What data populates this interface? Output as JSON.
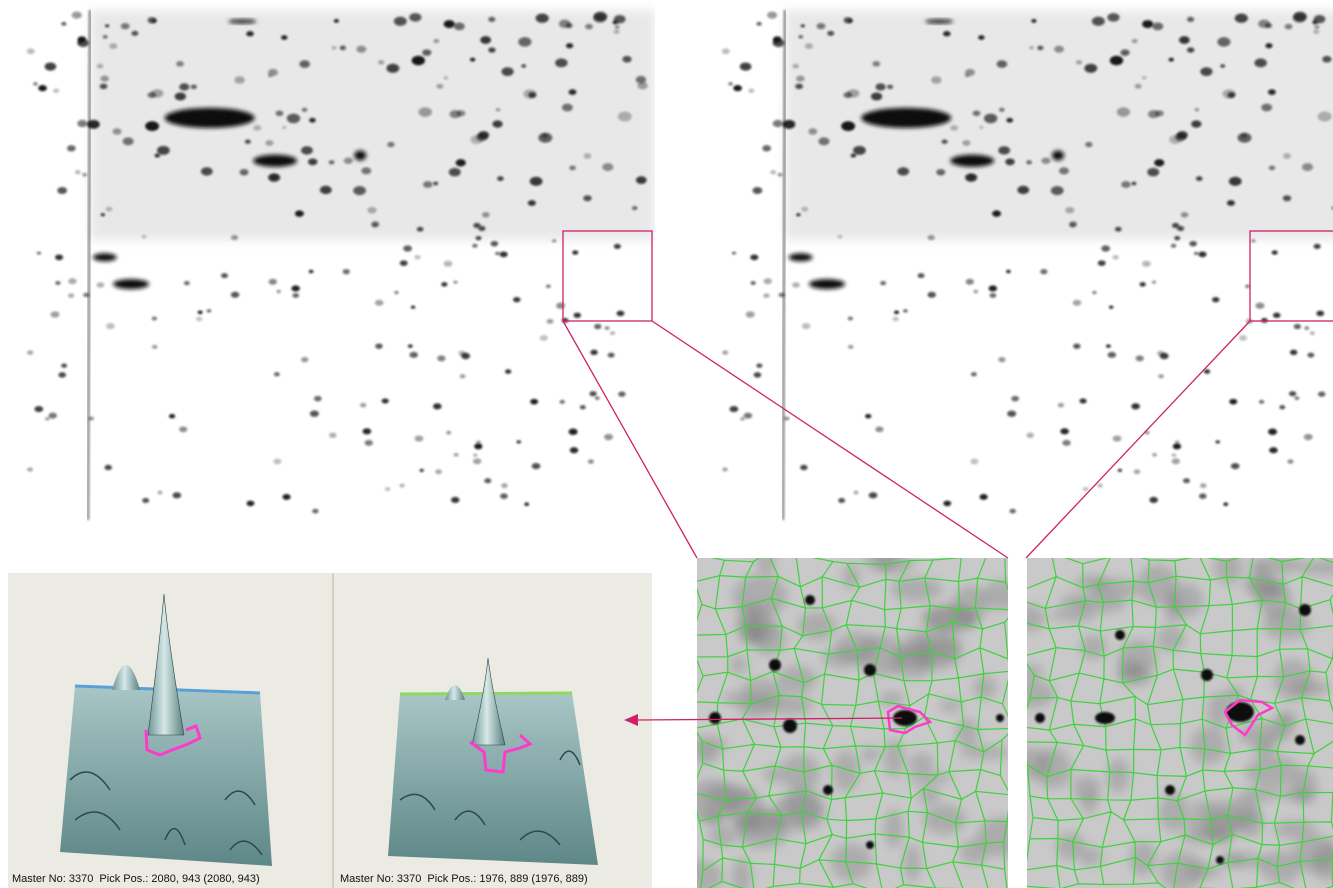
{
  "captions": [
    "Master No: 3370  Pick Pos.: 2080, 943 (2080, 943)",
    "Master No: 3370  Pick Pos.: 1976, 889 (1976, 889)"
  ]
}
